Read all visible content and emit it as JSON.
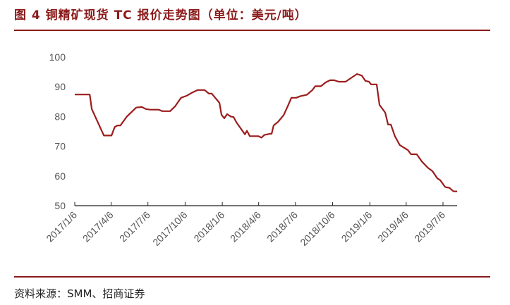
{
  "title": "图 4 铜精矿现货 TC 报价走势图（单位：美元/吨）",
  "source": "资料来源：SMM、招商证券",
  "chart_data": {
    "type": "line",
    "title": "图 4 铜精矿现货 TC 报价走势图（单位：美元/吨）",
    "ylim": [
      50,
      100
    ],
    "yticks": [
      "50",
      "60",
      "70",
      "80",
      "90",
      "100"
    ],
    "xticks": [
      "2017/1/6",
      "2017/4/6",
      "2017/7/6",
      "2017/10/6",
      "2018/1/6",
      "2018/4/6",
      "2018/7/6",
      "2018/10/6",
      "2019/1/6",
      "2019/4/6",
      "2019/7/6"
    ],
    "grid": false,
    "line_color": "#9B1C1C",
    "points": [
      [
        "2017-01-06",
        87.4
      ],
      [
        "2017-02-12",
        87.4
      ],
      [
        "2017-02-17",
        82.5
      ],
      [
        "2017-03-19",
        73.6
      ],
      [
        "2017-04-07",
        73.6
      ],
      [
        "2017-04-15",
        76.5
      ],
      [
        "2017-04-22",
        77
      ],
      [
        "2017-04-29",
        77
      ],
      [
        "2017-05-15",
        80
      ],
      [
        "2017-06-07",
        83
      ],
      [
        "2017-06-21",
        83.2
      ],
      [
        "2017-07-01",
        82.5
      ],
      [
        "2017-07-12",
        82.3
      ],
      [
        "2017-08-02",
        82.3
      ],
      [
        "2017-08-10",
        81.8
      ],
      [
        "2017-08-30",
        81.8
      ],
      [
        "2017-09-11",
        83.4
      ],
      [
        "2017-09-26",
        86.3
      ],
      [
        "2017-10-10",
        87
      ],
      [
        "2017-10-23",
        88
      ],
      [
        "2017-11-06",
        88.9
      ],
      [
        "2017-11-23",
        88.9
      ],
      [
        "2017-12-04",
        87.7
      ],
      [
        "2017-12-11",
        87.7
      ],
      [
        "2017-12-30",
        84.6
      ],
      [
        "2018-01-04",
        80.6
      ],
      [
        "2018-01-11",
        79.4
      ],
      [
        "2018-01-18",
        80.8
      ],
      [
        "2018-01-27",
        80
      ],
      [
        "2018-02-03",
        79.8
      ],
      [
        "2018-02-10",
        78
      ],
      [
        "2018-03-03",
        74
      ],
      [
        "2018-03-08",
        75.2
      ],
      [
        "2018-03-15",
        73.4
      ],
      [
        "2018-04-05",
        73.4
      ],
      [
        "2018-04-13",
        72.9
      ],
      [
        "2018-04-20",
        73.8
      ],
      [
        "2018-05-04",
        74.2
      ],
      [
        "2018-05-08",
        74.2
      ],
      [
        "2018-05-13",
        77
      ],
      [
        "2018-05-24",
        78.2
      ],
      [
        "2018-06-07",
        80.5
      ],
      [
        "2018-06-17",
        83.5
      ],
      [
        "2018-06-26",
        86.3
      ],
      [
        "2018-07-08",
        86.3
      ],
      [
        "2018-07-17",
        86.8
      ],
      [
        "2018-08-03",
        87.3
      ],
      [
        "2018-08-17",
        88.9
      ],
      [
        "2018-08-24",
        90.2
      ],
      [
        "2018-09-07",
        90.2
      ],
      [
        "2018-09-19",
        91.5
      ],
      [
        "2018-09-30",
        92.2
      ],
      [
        "2018-10-10",
        92.2
      ],
      [
        "2018-10-21",
        91.7
      ],
      [
        "2018-11-07",
        91.7
      ],
      [
        "2018-12-05",
        94.3
      ],
      [
        "2018-12-17",
        93.8
      ],
      [
        "2018-12-26",
        92
      ],
      [
        "2019-01-04",
        91.7
      ],
      [
        "2019-01-09",
        90.8
      ],
      [
        "2019-01-23",
        90.8
      ],
      [
        "2019-01-30",
        83.9
      ],
      [
        "2019-02-13",
        81.3
      ],
      [
        "2019-02-20",
        77.3
      ],
      [
        "2019-02-27",
        77.3
      ],
      [
        "2019-03-09",
        73.4
      ],
      [
        "2019-03-21",
        70.4
      ],
      [
        "2019-04-10",
        68.7
      ],
      [
        "2019-04-18",
        67.3
      ],
      [
        "2019-05-02",
        67.3
      ],
      [
        "2019-05-15",
        64.8
      ],
      [
        "2019-05-30",
        62.7
      ],
      [
        "2019-06-10",
        61.6
      ],
      [
        "2019-06-22",
        59.2
      ],
      [
        "2019-06-29",
        58.6
      ],
      [
        "2019-07-11",
        56.3
      ],
      [
        "2019-07-22",
        56
      ],
      [
        "2019-08-01",
        54.8
      ],
      [
        "2019-08-10",
        54.8
      ]
    ]
  }
}
